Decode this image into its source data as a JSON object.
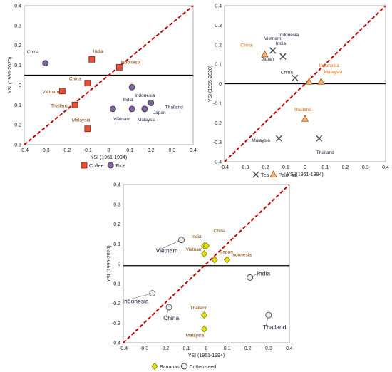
{
  "colors": {
    "diag": "#c00000",
    "coffee": "#e8503a",
    "rice": "#8064a2",
    "tea": "#404040",
    "palm": "#f4b183",
    "bananas": "#e6e600",
    "cotton": "#ececec",
    "label_dark": "#7f3f00",
    "label_orange": "#e06600",
    "label_navy": "#1f1f3f"
  },
  "chart_data": [
    {
      "type": "scatter",
      "xlabel": "YSI (1961-1994)",
      "ylabel": "YSI (1995-2020)",
      "xlim": [
        -0.4,
        0.4
      ],
      "ylim": [
        -0.3,
        0.4
      ],
      "xticks": [
        "-0.4",
        "-0.3",
        "-0.2",
        "-0.1",
        "0",
        "0.1",
        "0.2",
        "0.3",
        "0.4"
      ],
      "yticks": [
        "-0.3",
        "-0.2",
        "-0.1",
        "0",
        "0.1",
        "0.2",
        "0.3",
        "0.4"
      ],
      "hline": 0.05,
      "diagonal": [
        [
          -0.4,
          -0.3
        ],
        [
          0.4,
          0.4
        ]
      ],
      "legend": [
        {
          "name": "Coffee",
          "marker": "square"
        },
        {
          "name": "Rice",
          "marker": "circle"
        }
      ],
      "series": [
        {
          "name": "Coffee",
          "marker": "square",
          "points": [
            {
              "label": "India",
              "x": -0.08,
              "y": 0.13
            },
            {
              "label": "Indonesia",
              "x": 0.05,
              "y": 0.09
            },
            {
              "label": "China",
              "x": -0.1,
              "y": 0.01
            },
            {
              "label": "Vietnam",
              "x": -0.22,
              "y": -0.03
            },
            {
              "label": "Thailand",
              "x": -0.16,
              "y": -0.1
            },
            {
              "label": "Malaysia",
              "x": -0.1,
              "y": -0.22
            }
          ]
        },
        {
          "name": "Rice",
          "marker": "circle",
          "points": [
            {
              "label": "China",
              "x": -0.3,
              "y": 0.11
            },
            {
              "label": "Indonesia",
              "x": 0.11,
              "y": -0.01
            },
            {
              "label": "India",
              "x": 0.02,
              "y": -0.12
            },
            {
              "label": "Vietnam",
              "x": 0.11,
              "y": -0.12
            },
            {
              "label": "Thailand",
              "x": 0.2,
              "y": -0.09
            },
            {
              "label": "Malaysia",
              "x": 0.17,
              "y": -0.12
            },
            {
              "label": "Japan",
              "x": 0.17,
              "y": -0.12
            }
          ]
        }
      ]
    },
    {
      "type": "scatter",
      "xlabel": "YSI (1961-1994)",
      "ylabel": "YSI (1995-2020)",
      "xlim": [
        -0.4,
        0.4
      ],
      "ylim": [
        -0.4,
        0.4
      ],
      "xticks": [
        "-0.4",
        "-0.3",
        "-0.2",
        "-0.1",
        "0",
        "0.1",
        "0.2",
        "0.3",
        "0.4"
      ],
      "yticks": [
        "-0.4",
        "-0.3",
        "-0.2",
        "-0.1",
        "0",
        "0.1",
        "0.2",
        "0.3",
        "0.4"
      ],
      "hline": 0,
      "diagonal": [
        [
          -0.4,
          -0.4
        ],
        [
          0.4,
          0.4
        ]
      ],
      "legend": [
        {
          "name": "Tea",
          "marker": "x"
        },
        {
          "name": "Palm oil",
          "marker": "triangle"
        }
      ],
      "series": [
        {
          "name": "Tea",
          "marker": "x",
          "points": [
            {
              "label": "Vietnam",
              "x": -0.16,
              "y": 0.17
            },
            {
              "label": "Indonesia",
              "x": -0.11,
              "y": 0.14
            },
            {
              "label": "India",
              "x": -0.11,
              "y": 0.14
            },
            {
              "label": "Japan",
              "x": -0.16,
              "y": 0.17
            },
            {
              "label": "China",
              "x": -0.05,
              "y": 0.03
            },
            {
              "label": "Malaysia",
              "x": -0.13,
              "y": -0.28
            },
            {
              "label": "Thailand",
              "x": 0.07,
              "y": -0.28
            }
          ]
        },
        {
          "name": "Palm oil",
          "marker": "triangle",
          "points": [
            {
              "label": "China",
              "x": -0.2,
              "y": 0.15
            },
            {
              "label": "Indonesia",
              "x": 0.02,
              "y": 0.01
            },
            {
              "label": "Malaysia",
              "x": 0.08,
              "y": 0.01
            },
            {
              "label": "Thailand",
              "x": 0.0,
              "y": -0.18
            }
          ]
        }
      ]
    },
    {
      "type": "scatter",
      "xlabel": "YSI (1961-1994)",
      "ylabel": "YSI (1995-2020)",
      "xlim": [
        -0.4,
        0.4
      ],
      "ylim": [
        -0.4,
        0.4
      ],
      "xticks": [
        "-0.4",
        "-0.3",
        "-0.2",
        "-0.1",
        "0",
        "0.1",
        "0.2",
        "0.3",
        "0.4"
      ],
      "yticks": [
        "-0.4",
        "-0.3",
        "-0.2",
        "-0.1",
        "0",
        "0.1",
        "0.2",
        "0.3",
        "0.4"
      ],
      "hline": -0.01,
      "diagonal": [
        [
          -0.4,
          -0.4
        ],
        [
          0.4,
          0.4
        ]
      ],
      "legend": [
        {
          "name": "Bananas",
          "marker": "diamond"
        },
        {
          "name": "Cotten seed",
          "marker": "circle"
        }
      ],
      "series": [
        {
          "name": "Bananas",
          "marker": "diamond",
          "points": [
            {
              "label": "India",
              "x": -0.01,
              "y": 0.09
            },
            {
              "label": "Vietnam",
              "x": -0.01,
              "y": 0.05
            },
            {
              "label": "China",
              "x": 0.0,
              "y": 0.09
            },
            {
              "label": "Japan",
              "x": 0.04,
              "y": 0.02
            },
            {
              "label": "Indonesia",
              "x": 0.1,
              "y": 0.02
            },
            {
              "label": "Thailand",
              "x": -0.01,
              "y": -0.26
            },
            {
              "label": "Malaysia",
              "x": -0.01,
              "y": -0.33
            }
          ]
        },
        {
          "name": "Cotten seed",
          "marker": "circle",
          "points": [
            {
              "label": "Vietnam",
              "x": -0.12,
              "y": 0.12
            },
            {
              "label": "Indonesia",
              "x": -0.26,
              "y": -0.15
            },
            {
              "label": "China",
              "x": -0.18,
              "y": -0.22
            },
            {
              "label": "India",
              "x": 0.21,
              "y": -0.07
            },
            {
              "label": "Thailand",
              "x": 0.3,
              "y": -0.26
            }
          ]
        }
      ]
    }
  ]
}
